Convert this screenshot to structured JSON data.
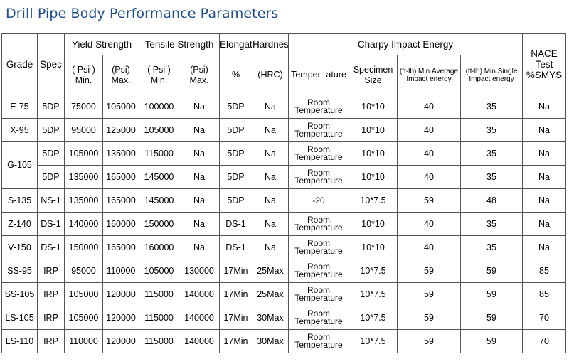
{
  "title": "Drill Pipe Body Performance Parameters",
  "header": {
    "grade": "Grade",
    "spec": "Spec",
    "yield": "Yield Strength",
    "tensile": "Tensile Strength",
    "elongation": "Elongation",
    "hardness": "Hardness",
    "charpy": "Charpy Impact Energy",
    "nace": "NACE Test %SMYS",
    "yield_min": "( Psi ) Min.",
    "yield_max": "(Psi) Max.",
    "tensile_min": "( Psi ) Min.",
    "tensile_max": "(Psi) Max.",
    "elong_unit": "%",
    "hardness_unit": "(HRC)",
    "temperature": "Temper- ature",
    "specimen": "Specimen Size",
    "avg_energy": "(ft-lb) Min.Average Impact energy",
    "single_energy": "(ft-lb) Min.Single Impact energy"
  },
  "rows": [
    {
      "grade": "E-75",
      "spec": "5DP",
      "ymin": "75000",
      "ymax": "105000",
      "tmin": "100000",
      "tmax": "Na",
      "elong": "5DP",
      "hard": "Na",
      "temp": "Room Temperature",
      "size": "10*10",
      "avg": "40",
      "single": "35",
      "nace": "Na"
    },
    {
      "grade": "X-95",
      "spec": "5DP",
      "ymin": "95000",
      "ymax": "125000",
      "tmin": "105000",
      "tmax": "Na",
      "elong": "5DP",
      "hard": "Na",
      "temp": "Room Temperature",
      "size": "10*10",
      "avg": "40",
      "single": "35",
      "nace": "Na"
    },
    {
      "grade": "G-105",
      "spec": "5DP",
      "ymin": "105000",
      "ymax": "135000",
      "tmin": "115000",
      "tmax": "Na",
      "elong": "5DP",
      "hard": "Na",
      "temp": "Room Temperature",
      "size": "10*10",
      "avg": "40",
      "single": "35",
      "nace": "Na"
    },
    {
      "grade": "",
      "spec": "5DP",
      "ymin": "135000",
      "ymax": "165000",
      "tmin": "145000",
      "tmax": "Na",
      "elong": "5DP",
      "hard": "Na",
      "temp": "Room Temperature",
      "size": "10*10",
      "avg": "40",
      "single": "35",
      "nace": "Na"
    },
    {
      "grade": "S-135",
      "spec": "NS-1",
      "ymin": "135000",
      "ymax": "165000",
      "tmin": "145000",
      "tmax": "Na",
      "elong": "5DP",
      "hard": "Na",
      "temp": "-20",
      "size": "10*7.5",
      "avg": "59",
      "single": "48",
      "nace": "Na"
    },
    {
      "grade": "Z-140",
      "spec": "DS-1",
      "ymin": "140000",
      "ymax": "160000",
      "tmin": "150000",
      "tmax": "Na",
      "elong": "DS-1",
      "hard": "Na",
      "temp": "Room Temperature",
      "size": "10*10",
      "avg": "40",
      "single": "35",
      "nace": "Na"
    },
    {
      "grade": "V-150",
      "spec": "DS-1",
      "ymin": "150000",
      "ymax": "165000",
      "tmin": "160000",
      "tmax": "Na",
      "elong": "DS-1",
      "hard": "Na",
      "temp": "Room Temperature",
      "size": "10*10",
      "avg": "40",
      "single": "35",
      "nace": "Na"
    },
    {
      "grade": "SS-95",
      "spec": "IRP",
      "ymin": "95000",
      "ymax": "110000",
      "tmin": "105000",
      "tmax": "130000",
      "elong": "17Min",
      "hard": "25Max",
      "temp": "Room Temperature",
      "size": "10*7.5",
      "avg": "59",
      "single": "59",
      "nace": "85"
    },
    {
      "grade": "SS-105",
      "spec": "IRP",
      "ymin": "105000",
      "ymax": "120000",
      "tmin": "115000",
      "tmax": "140000",
      "elong": "17Min",
      "hard": "25Max",
      "temp": "Room Temperature",
      "size": "10*7.5",
      "avg": "59",
      "single": "59",
      "nace": "85"
    },
    {
      "grade": "LS-105",
      "spec": "IRP",
      "ymin": "105000",
      "ymax": "120000",
      "tmin": "115000",
      "tmax": "140000",
      "elong": "17Min",
      "hard": "30Max",
      "temp": "Room Temperature",
      "size": "10*7.5",
      "avg": "59",
      "single": "59",
      "nace": "70"
    },
    {
      "grade": "LS-110",
      "spec": "IRP",
      "ymin": "110000",
      "ymax": "120000",
      "tmin": "115000",
      "tmax": "140000",
      "elong": "17Min",
      "hard": "30Max",
      "temp": "Room Temperature",
      "size": "10*7.5",
      "avg": "59",
      "single": "59",
      "nace": "70"
    }
  ]
}
